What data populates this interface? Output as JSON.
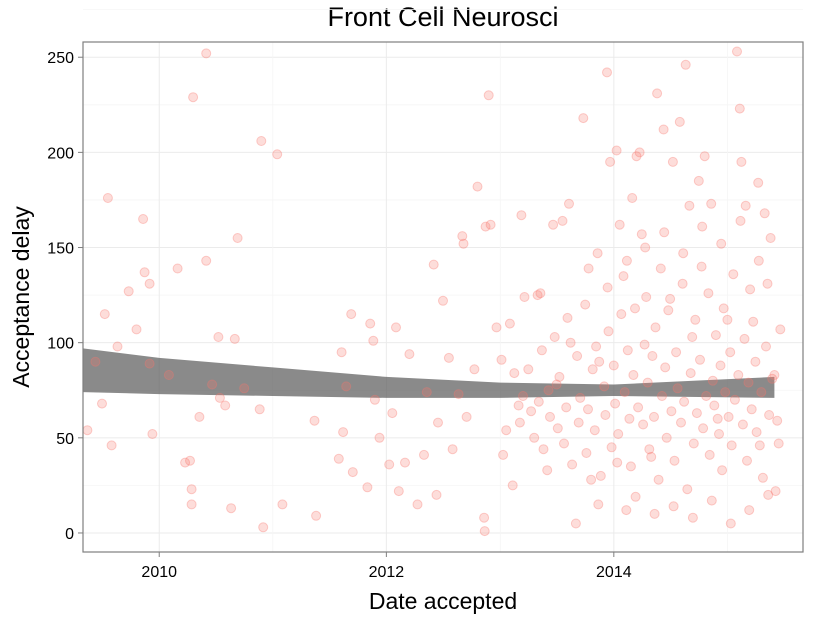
{
  "chart_data": {
    "type": "scatter",
    "title": "Front Cell Neurosci",
    "xlabel": "Date accepted",
    "ylabel": "Acceptance delay",
    "x_axis_type": "date",
    "xlim": [
      "2009-05-01",
      "2015-09-01"
    ],
    "ylim": [
      -10,
      258
    ],
    "x_ticks": [
      {
        "value": "2010-01-01",
        "label": "2010"
      },
      {
        "value": "2012-01-01",
        "label": "2012"
      },
      {
        "value": "2014-01-01",
        "label": "2014"
      }
    ],
    "y_ticks": [
      0,
      50,
      100,
      150,
      200,
      250
    ],
    "grid": true,
    "point_color": "#f8766d",
    "point_opacity": 0.25,
    "band_color": "#595959",
    "trend_band": [
      {
        "x": "2009-05-01",
        "lower": 74,
        "upper": 97
      },
      {
        "x": "2010-01-01",
        "lower": 73,
        "upper": 92
      },
      {
        "x": "2011-01-01",
        "lower": 72,
        "upper": 87
      },
      {
        "x": "2012-01-01",
        "lower": 71,
        "upper": 82
      },
      {
        "x": "2013-01-01",
        "lower": 71,
        "upper": 79
      },
      {
        "x": "2014-01-01",
        "lower": 72,
        "upper": 78
      },
      {
        "x": "2015-06-01",
        "lower": 71,
        "upper": 82
      }
    ],
    "points": [
      {
        "x": "2009-05-15",
        "y": 54
      },
      {
        "x": "2009-06-10",
        "y": 90
      },
      {
        "x": "2009-07-01",
        "y": 68
      },
      {
        "x": "2009-07-10",
        "y": 115
      },
      {
        "x": "2009-07-20",
        "y": 176
      },
      {
        "x": "2009-08-01",
        "y": 46
      },
      {
        "x": "2009-08-20",
        "y": 98
      },
      {
        "x": "2009-09-25",
        "y": 127
      },
      {
        "x": "2009-10-20",
        "y": 107
      },
      {
        "x": "2009-11-10",
        "y": 165
      },
      {
        "x": "2009-11-15",
        "y": 137
      },
      {
        "x": "2009-12-01",
        "y": 131
      },
      {
        "x": "2009-12-10",
        "y": 52
      },
      {
        "x": "2009-12-01",
        "y": 89
      },
      {
        "x": "2010-02-01",
        "y": 83
      },
      {
        "x": "2010-03-01",
        "y": 139
      },
      {
        "x": "2010-03-25",
        "y": 37
      },
      {
        "x": "2010-04-10",
        "y": 38
      },
      {
        "x": "2010-04-15",
        "y": 23
      },
      {
        "x": "2010-04-15",
        "y": 15
      },
      {
        "x": "2010-04-20",
        "y": 229
      },
      {
        "x": "2010-05-10",
        "y": 61
      },
      {
        "x": "2010-06-01",
        "y": 143
      },
      {
        "x": "2010-06-01",
        "y": 252
      },
      {
        "x": "2010-06-20",
        "y": 78
      },
      {
        "x": "2010-07-10",
        "y": 103
      },
      {
        "x": "2010-07-15",
        "y": 71
      },
      {
        "x": "2010-08-01",
        "y": 67
      },
      {
        "x": "2010-08-20",
        "y": 13
      },
      {
        "x": "2010-09-01",
        "y": 102
      },
      {
        "x": "2010-09-10",
        "y": 155
      },
      {
        "x": "2010-10-01",
        "y": 76
      },
      {
        "x": "2010-11-20",
        "y": 65
      },
      {
        "x": "2010-11-25",
        "y": 206
      },
      {
        "x": "2010-12-01",
        "y": 3
      },
      {
        "x": "2011-01-15",
        "y": 199
      },
      {
        "x": "2011-02-01",
        "y": 15
      },
      {
        "x": "2011-05-15",
        "y": 59
      },
      {
        "x": "2011-05-20",
        "y": 9
      },
      {
        "x": "2011-08-01",
        "y": 39
      },
      {
        "x": "2011-08-10",
        "y": 95
      },
      {
        "x": "2011-08-15",
        "y": 53
      },
      {
        "x": "2011-08-25",
        "y": 77
      },
      {
        "x": "2011-09-10",
        "y": 115
      },
      {
        "x": "2011-09-15",
        "y": 32
      },
      {
        "x": "2011-11-01",
        "y": 24
      },
      {
        "x": "2011-11-10",
        "y": 110
      },
      {
        "x": "2011-11-20",
        "y": 101
      },
      {
        "x": "2011-11-25",
        "y": 70
      },
      {
        "x": "2011-12-10",
        "y": 50
      },
      {
        "x": "2012-01-10",
        "y": 36
      },
      {
        "x": "2012-01-20",
        "y": 63
      },
      {
        "x": "2012-02-01",
        "y": 108
      },
      {
        "x": "2012-02-10",
        "y": 22
      },
      {
        "x": "2012-03-01",
        "y": 37
      },
      {
        "x": "2012-03-15",
        "y": 94
      },
      {
        "x": "2012-04-10",
        "y": 15
      },
      {
        "x": "2012-05-01",
        "y": 41
      },
      {
        "x": "2012-05-10",
        "y": 74
      },
      {
        "x": "2012-06-01",
        "y": 141
      },
      {
        "x": "2012-06-10",
        "y": 20
      },
      {
        "x": "2012-06-15",
        "y": 58
      },
      {
        "x": "2012-07-01",
        "y": 122
      },
      {
        "x": "2012-07-20",
        "y": 92
      },
      {
        "x": "2012-08-01",
        "y": 44
      },
      {
        "x": "2012-08-20",
        "y": 73
      },
      {
        "x": "2012-09-01",
        "y": 156
      },
      {
        "x": "2012-09-05",
        "y": 152
      },
      {
        "x": "2012-09-15",
        "y": 61
      },
      {
        "x": "2012-10-10",
        "y": 86
      },
      {
        "x": "2012-10-20",
        "y": 182
      },
      {
        "x": "2012-11-10",
        "y": 8
      },
      {
        "x": "2012-11-12",
        "y": 1
      },
      {
        "x": "2012-11-15",
        "y": 161
      },
      {
        "x": "2012-11-25",
        "y": 230
      },
      {
        "x": "2012-12-01",
        "y": 162
      },
      {
        "x": "2012-12-20",
        "y": 108
      },
      {
        "x": "2013-01-10",
        "y": 41
      },
      {
        "x": "2013-01-20",
        "y": 54
      },
      {
        "x": "2013-02-01",
        "y": 110
      },
      {
        "x": "2013-02-10",
        "y": 25
      },
      {
        "x": "2013-03-10",
        "y": 167
      },
      {
        "x": "2013-03-20",
        "y": 124
      },
      {
        "x": "2013-04-10",
        "y": 64
      },
      {
        "x": "2013-05-01",
        "y": 125
      },
      {
        "x": "2013-05-10",
        "y": 126
      },
      {
        "x": "2013-05-20",
        "y": 44
      },
      {
        "x": "2013-06-01",
        "y": 33
      },
      {
        "x": "2013-06-20",
        "y": 162
      },
      {
        "x": "2013-07-01",
        "y": 78
      },
      {
        "x": "2013-07-20",
        "y": 164
      },
      {
        "x": "2013-08-10",
        "y": 173
      },
      {
        "x": "2013-08-15",
        "y": 100
      },
      {
        "x": "2013-09-01",
        "y": 5
      },
      {
        "x": "2013-09-25",
        "y": 218
      },
      {
        "x": "2013-10-20",
        "y": 28
      },
      {
        "x": "2013-11-10",
        "y": 147
      },
      {
        "x": "2013-11-15",
        "y": 90
      },
      {
        "x": "2013-12-10",
        "y": 242
      },
      {
        "x": "2013-12-20",
        "y": 195
      },
      {
        "x": "2014-01-10",
        "y": 201
      },
      {
        "x": "2014-01-20",
        "y": 162
      },
      {
        "x": "2014-02-01",
        "y": 135
      },
      {
        "x": "2014-02-10",
        "y": 12
      },
      {
        "x": "2014-03-01",
        "y": 176
      },
      {
        "x": "2014-03-10",
        "y": 118
      },
      {
        "x": "2014-03-15",
        "y": 198
      },
      {
        "x": "2014-03-25",
        "y": 200
      },
      {
        "x": "2014-04-01",
        "y": 157
      },
      {
        "x": "2014-04-10",
        "y": 99
      },
      {
        "x": "2014-05-01",
        "y": 40
      },
      {
        "x": "2014-05-20",
        "y": 231
      },
      {
        "x": "2014-06-01",
        "y": 139
      },
      {
        "x": "2014-06-10",
        "y": 212
      },
      {
        "x": "2014-07-01",
        "y": 123
      },
      {
        "x": "2014-07-10",
        "y": 195
      },
      {
        "x": "2014-08-01",
        "y": 216
      },
      {
        "x": "2014-08-20",
        "y": 246
      },
      {
        "x": "2014-09-01",
        "y": 172
      },
      {
        "x": "2014-09-10",
        "y": 103
      },
      {
        "x": "2014-10-01",
        "y": 185
      },
      {
        "x": "2014-10-10",
        "y": 140
      },
      {
        "x": "2014-10-20",
        "y": 198
      },
      {
        "x": "2014-11-10",
        "y": 173
      },
      {
        "x": "2014-12-01",
        "y": 60
      },
      {
        "x": "2015-01-01",
        "y": 112
      },
      {
        "x": "2015-02-01",
        "y": 253
      },
      {
        "x": "2015-02-10",
        "y": 223
      },
      {
        "x": "2015-02-15",
        "y": 195
      },
      {
        "x": "2015-03-01",
        "y": 172
      },
      {
        "x": "2015-03-15",
        "y": 128
      },
      {
        "x": "2015-04-10",
        "y": 184
      },
      {
        "x": "2015-04-15",
        "y": 46
      },
      {
        "x": "2015-05-01",
        "y": 168
      },
      {
        "x": "2015-05-10",
        "y": 131
      },
      {
        "x": "2015-05-20",
        "y": 155
      },
      {
        "x": "2015-06-01",
        "y": 83
      },
      {
        "x": "2015-06-05",
        "y": 22
      },
      {
        "x": "2015-06-10",
        "y": 59
      },
      {
        "x": "2013-01-05",
        "y": 91
      },
      {
        "x": "2013-02-15",
        "y": 84
      },
      {
        "x": "2013-03-01",
        "y": 67
      },
      {
        "x": "2013-03-05",
        "y": 58
      },
      {
        "x": "2013-03-15",
        "y": 72
      },
      {
        "x": "2013-04-01",
        "y": 86
      },
      {
        "x": "2013-04-20",
        "y": 50
      },
      {
        "x": "2013-05-05",
        "y": 69
      },
      {
        "x": "2013-05-15",
        "y": 96
      },
      {
        "x": "2013-06-05",
        "y": 75
      },
      {
        "x": "2013-06-10",
        "y": 61
      },
      {
        "x": "2013-06-25",
        "y": 103
      },
      {
        "x": "2013-07-05",
        "y": 55
      },
      {
        "x": "2013-07-10",
        "y": 82
      },
      {
        "x": "2013-07-25",
        "y": 47
      },
      {
        "x": "2013-08-01",
        "y": 66
      },
      {
        "x": "2013-08-05",
        "y": 113
      },
      {
        "x": "2013-08-20",
        "y": 36
      },
      {
        "x": "2013-09-05",
        "y": 93
      },
      {
        "x": "2013-09-10",
        "y": 58
      },
      {
        "x": "2013-09-15",
        "y": 71
      },
      {
        "x": "2013-10-01",
        "y": 120
      },
      {
        "x": "2013-10-05",
        "y": 42
      },
      {
        "x": "2013-10-10",
        "y": 65
      },
      {
        "x": "2013-10-25",
        "y": 86
      },
      {
        "x": "2013-11-01",
        "y": 54
      },
      {
        "x": "2013-11-05",
        "y": 98
      },
      {
        "x": "2013-11-20",
        "y": 30
      },
      {
        "x": "2013-12-01",
        "y": 77
      },
      {
        "x": "2013-12-05",
        "y": 62
      },
      {
        "x": "2013-12-15",
        "y": 106
      },
      {
        "x": "2013-12-25",
        "y": 45
      },
      {
        "x": "2014-01-01",
        "y": 88
      },
      {
        "x": "2014-01-05",
        "y": 68
      },
      {
        "x": "2014-01-15",
        "y": 52
      },
      {
        "x": "2014-01-25",
        "y": 115
      },
      {
        "x": "2014-02-05",
        "y": 74
      },
      {
        "x": "2014-02-15",
        "y": 96
      },
      {
        "x": "2014-02-20",
        "y": 60
      },
      {
        "x": "2014-02-25",
        "y": 35
      },
      {
        "x": "2014-03-05",
        "y": 83
      },
      {
        "x": "2014-03-20",
        "y": 66
      },
      {
        "x": "2014-04-05",
        "y": 57
      },
      {
        "x": "2014-04-15",
        "y": 124
      },
      {
        "x": "2014-04-20",
        "y": 79
      },
      {
        "x": "2014-04-25",
        "y": 44
      },
      {
        "x": "2014-05-05",
        "y": 93
      },
      {
        "x": "2014-05-10",
        "y": 61
      },
      {
        "x": "2014-05-15",
        "y": 108
      },
      {
        "x": "2014-05-25",
        "y": 28
      },
      {
        "x": "2014-06-05",
        "y": 72
      },
      {
        "x": "2014-06-15",
        "y": 87
      },
      {
        "x": "2014-06-20",
        "y": 50
      },
      {
        "x": "2014-06-25",
        "y": 117
      },
      {
        "x": "2014-07-05",
        "y": 64
      },
      {
        "x": "2014-07-15",
        "y": 38
      },
      {
        "x": "2014-07-20",
        "y": 95
      },
      {
        "x": "2014-07-25",
        "y": 76
      },
      {
        "x": "2014-08-05",
        "y": 58
      },
      {
        "x": "2014-08-10",
        "y": 131
      },
      {
        "x": "2014-08-15",
        "y": 69
      },
      {
        "x": "2014-08-25",
        "y": 23
      },
      {
        "x": "2014-09-05",
        "y": 84
      },
      {
        "x": "2014-09-15",
        "y": 47
      },
      {
        "x": "2014-09-20",
        "y": 112
      },
      {
        "x": "2014-09-25",
        "y": 63
      },
      {
        "x": "2014-10-05",
        "y": 91
      },
      {
        "x": "2014-10-15",
        "y": 55
      },
      {
        "x": "2014-10-25",
        "y": 72
      },
      {
        "x": "2014-11-01",
        "y": 126
      },
      {
        "x": "2014-11-05",
        "y": 41
      },
      {
        "x": "2014-11-15",
        "y": 80
      },
      {
        "x": "2014-11-20",
        "y": 67
      },
      {
        "x": "2014-11-25",
        "y": 104
      },
      {
        "x": "2014-12-05",
        "y": 52
      },
      {
        "x": "2014-12-10",
        "y": 88
      },
      {
        "x": "2014-12-15",
        "y": 33
      },
      {
        "x": "2014-12-20",
        "y": 118
      },
      {
        "x": "2014-12-25",
        "y": 74
      },
      {
        "x": "2015-01-05",
        "y": 61
      },
      {
        "x": "2015-01-10",
        "y": 95
      },
      {
        "x": "2015-01-15",
        "y": 46
      },
      {
        "x": "2015-01-20",
        "y": 136
      },
      {
        "x": "2015-01-25",
        "y": 70
      },
      {
        "x": "2015-02-05",
        "y": 83
      },
      {
        "x": "2015-02-20",
        "y": 57
      },
      {
        "x": "2015-02-25",
        "y": 102
      },
      {
        "x": "2015-03-05",
        "y": 38
      },
      {
        "x": "2015-03-10",
        "y": 79
      },
      {
        "x": "2015-03-20",
        "y": 65
      },
      {
        "x": "2015-03-25",
        "y": 111
      },
      {
        "x": "2015-04-01",
        "y": 90
      },
      {
        "x": "2015-04-05",
        "y": 53
      },
      {
        "x": "2015-04-20",
        "y": 74
      },
      {
        "x": "2015-04-25",
        "y": 29
      },
      {
        "x": "2015-05-05",
        "y": 98
      },
      {
        "x": "2015-05-15",
        "y": 62
      },
      {
        "x": "2015-05-25",
        "y": 81
      },
      {
        "x": "2015-06-15",
        "y": 47
      },
      {
        "x": "2015-06-20",
        "y": 107
      },
      {
        "x": "2014-01-12",
        "y": 37
      },
      {
        "x": "2014-02-12",
        "y": 143
      },
      {
        "x": "2014-03-12",
        "y": 19
      },
      {
        "x": "2014-04-12",
        "y": 150
      },
      {
        "x": "2014-05-12",
        "y": 10
      },
      {
        "x": "2014-06-12",
        "y": 158
      },
      {
        "x": "2014-07-12",
        "y": 14
      },
      {
        "x": "2014-08-12",
        "y": 147
      },
      {
        "x": "2014-09-12",
        "y": 8
      },
      {
        "x": "2014-10-12",
        "y": 161
      },
      {
        "x": "2014-11-12",
        "y": 17
      },
      {
        "x": "2014-12-12",
        "y": 152
      },
      {
        "x": "2015-01-12",
        "y": 5
      },
      {
        "x": "2015-02-12",
        "y": 164
      },
      {
        "x": "2015-03-12",
        "y": 12
      },
      {
        "x": "2015-04-12",
        "y": 143
      },
      {
        "x": "2015-05-12",
        "y": 20
      },
      {
        "x": "2013-10-12",
        "y": 139
      },
      {
        "x": "2013-11-12",
        "y": 15
      },
      {
        "x": "2013-12-12",
        "y": 129
      }
    ]
  }
}
